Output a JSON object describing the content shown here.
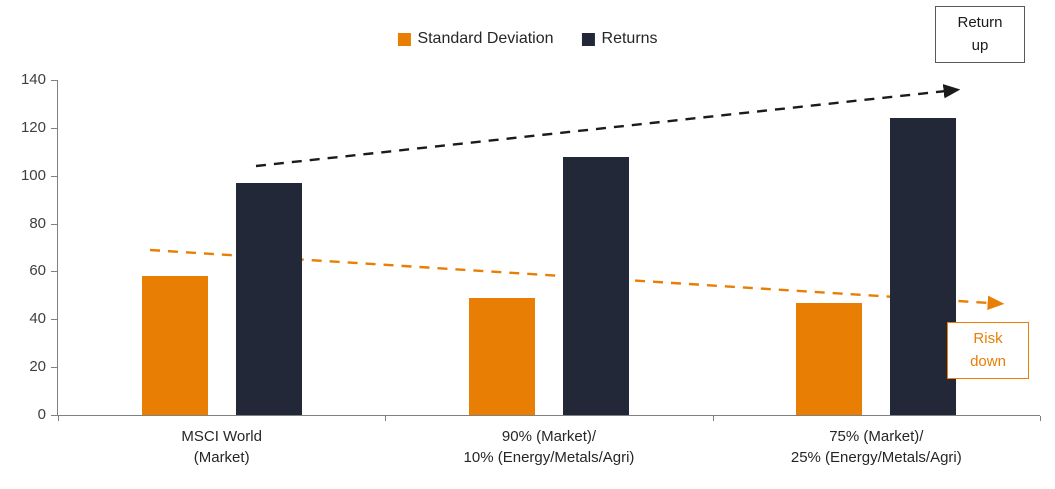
{
  "colors": {
    "std_dev": "#E87E04",
    "returns": "#232839",
    "return_arrow": "#1b1b1b",
    "axis": "#808080",
    "text": "#3f3f3f"
  },
  "annotations": {
    "return_up": "Return\nup",
    "risk_down": "Risk\ndown"
  },
  "chart_data": {
    "type": "bar",
    "categories": [
      "MSCI World\n(Market)",
      "90% (Market)/\n10% (Energy/Metals/Agri)",
      "75% (Market)/\n25% (Energy/Metals/Agri)"
    ],
    "series": [
      {
        "name": "Standard Deviation",
        "color": "#E87E04",
        "values": [
          58,
          49,
          47
        ]
      },
      {
        "name": "Returns",
        "color": "#232839",
        "values": [
          97,
          108,
          124
        ]
      }
    ],
    "ylim": [
      0,
      140
    ],
    "yticks": [
      0,
      20,
      40,
      60,
      80,
      100,
      120,
      140
    ],
    "grid": false,
    "legend_position": "top"
  }
}
